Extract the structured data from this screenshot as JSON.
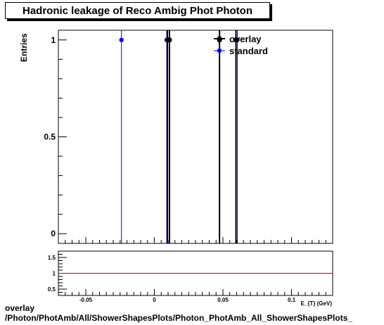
{
  "title": "Hadronic leakage of Reco Ambig Phot Photon",
  "footer": {
    "line1": "overlay",
    "line2": "/Photon/PhotAmb/All/ShowerShapesPlots/Photon_PhotAmb_All_ShowerShapesPlots_"
  },
  "chart_data": [
    {
      "type": "scatter",
      "ylabel": "Entries",
      "xlabel": "E_{T} (GeV)",
      "xlim": [
        -0.07,
        0.13
      ],
      "ylim": [
        -0.05,
        1.05
      ],
      "x_ticks": [
        -0.05,
        0,
        0.05,
        0.1
      ],
      "x_tick_labels": [
        "-0.05",
        "0",
        "0.05",
        "0.1"
      ],
      "y_ticks": [
        0,
        0.5,
        1
      ],
      "y_tick_labels": [
        "0",
        "0.5",
        "1"
      ],
      "legend": {
        "position": "top-right",
        "entries": [
          "overlay",
          "standard"
        ]
      },
      "series": [
        {
          "name": "overlay",
          "color": "#000000",
          "x": [
            0.011,
            0.0095,
            0.0475,
            0.0595
          ],
          "y": [
            1,
            1,
            1,
            1
          ]
        },
        {
          "name": "standard",
          "color": "#0000ff",
          "x": [
            -0.024,
            0.009,
            0.0605
          ],
          "y": [
            1,
            1,
            1
          ]
        }
      ]
    },
    {
      "type": "line",
      "ylabel": "",
      "xlabel": "",
      "xlim": [
        -0.07,
        0.13
      ],
      "ylim": [
        0.3,
        1.7
      ],
      "y_ticks": [
        0.5,
        1,
        1.5
      ],
      "y_tick_labels": [
        "0.5",
        "1",
        "1.5"
      ],
      "reference_line": {
        "y": 1,
        "color": "#cc0000"
      }
    }
  ]
}
